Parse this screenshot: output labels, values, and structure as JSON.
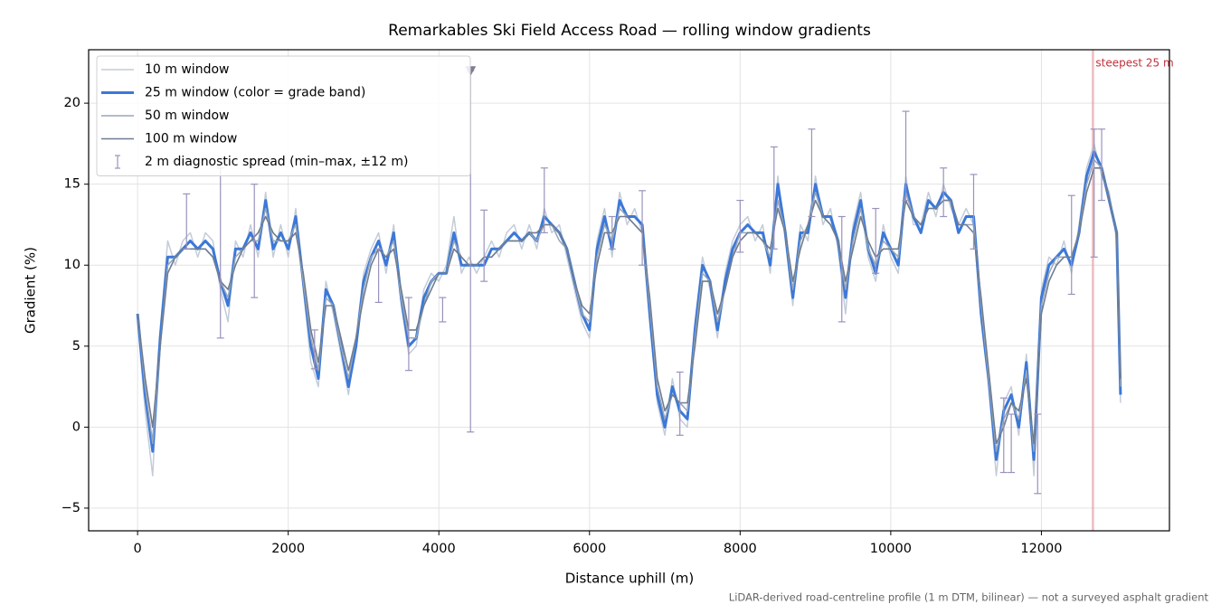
{
  "chart_data": {
    "type": "line",
    "title": "Remarkables Ski Field Access Road — rolling window gradients",
    "xlabel": "Distance uphill (m)",
    "ylabel": "Gradient (%)",
    "footnote": "LiDAR-derived road-centreline profile (1 m DTM, bilinear) — not a surveyed asphalt gradient",
    "xlim": [
      -650,
      13700
    ],
    "ylim": [
      -6.4,
      23.3
    ],
    "xticks": [
      0,
      2000,
      4000,
      6000,
      8000,
      10000,
      12000
    ],
    "yticks": [
      {
        "value": -5,
        "label": "−5"
      },
      0,
      5,
      10,
      15,
      20
    ],
    "grid": true,
    "legend": "upper left",
    "x": [
      0,
      100,
      200,
      300,
      400,
      500,
      600,
      700,
      800,
      900,
      1000,
      1100,
      1200,
      1300,
      1400,
      1500,
      1600,
      1700,
      1800,
      1900,
      2000,
      2100,
      2200,
      2300,
      2400,
      2500,
      2600,
      2700,
      2800,
      2900,
      3000,
      3100,
      3200,
      3300,
      3400,
      3500,
      3600,
      3700,
      3800,
      3900,
      4000,
      4100,
      4200,
      4300,
      4400,
      4500,
      4600,
      4700,
      4800,
      4900,
      5000,
      5100,
      5200,
      5300,
      5400,
      5500,
      5600,
      5700,
      5800,
      5900,
      6000,
      6100,
      6200,
      6300,
      6400,
      6500,
      6600,
      6700,
      6800,
      6900,
      7000,
      7100,
      7200,
      7300,
      7400,
      7500,
      7600,
      7700,
      7800,
      7900,
      8000,
      8100,
      8200,
      8300,
      8400,
      8500,
      8600,
      8700,
      8800,
      8900,
      9000,
      9100,
      9200,
      9300,
      9400,
      9500,
      9600,
      9700,
      9800,
      9900,
      10000,
      10100,
      10200,
      10300,
      10400,
      10500,
      10600,
      10700,
      10800,
      10900,
      11000,
      11100,
      11200,
      11300,
      11400,
      11500,
      11600,
      11700,
      11800,
      11900,
      12000,
      12100,
      12200,
      12300,
      12400,
      12500,
      12600,
      12700,
      12800,
      12900,
      13000,
      13050
    ],
    "series": [
      {
        "name": "10 m window",
        "color": "#b4bfcf",
        "width": 1.5,
        "opacity": 0.8,
        "values": [
          6.5,
          1,
          -3,
          6,
          11.5,
          10,
          11.5,
          12,
          10.5,
          12,
          11.5,
          8.5,
          6.5,
          11.5,
          10.5,
          12.5,
          10.5,
          14.5,
          10.5,
          12.5,
          10.5,
          13.5,
          8.5,
          4,
          2.5,
          9,
          7,
          4.5,
          2,
          5.5,
          9.5,
          11,
          12,
          9.5,
          12.5,
          7.5,
          4.5,
          5,
          8.5,
          9.5,
          9,
          10,
          13,
          9.5,
          10.5,
          9.5,
          10.5,
          11.5,
          10.5,
          12,
          12.5,
          11,
          12.5,
          11,
          13.5,
          12,
          12.5,
          10.5,
          8.5,
          6.5,
          5.5,
          11.5,
          13.5,
          10.5,
          14.5,
          12.5,
          13.5,
          12,
          6.5,
          1.5,
          -0.5,
          3,
          0.5,
          0,
          6.5,
          10.5,
          8.5,
          5.5,
          9.5,
          11.5,
          12.5,
          13,
          11.5,
          12.5,
          9.5,
          15.5,
          11.5,
          7.5,
          12.5,
          11.5,
          15.5,
          12.5,
          13.5,
          11,
          7,
          12.5,
          14.5,
          10.5,
          9,
          12.5,
          10.5,
          9.5,
          15.5,
          12.5,
          12.5,
          14.5,
          13,
          15,
          13.5,
          12.5,
          13.5,
          12.5,
          6.5,
          2.5,
          -3,
          1.5,
          2.5,
          -0.5,
          4.5,
          -3,
          8.5,
          10.5,
          10,
          11.5,
          9.5,
          12.5,
          16,
          17.5,
          15.5,
          14.5,
          11.5,
          1.5
        ]
      },
      {
        "name": "25 m window (color = grade band)",
        "color": "#3b78d8",
        "width": 3,
        "opacity": 1,
        "values": [
          7,
          2,
          -1.5,
          5.5,
          10.5,
          10.5,
          11,
          11.5,
          11,
          11.5,
          11,
          9,
          7.5,
          11,
          11,
          12,
          11,
          14,
          11,
          12,
          11,
          13,
          9,
          5,
          3,
          8.5,
          7.5,
          5,
          2.5,
          5,
          9,
          10.5,
          11.5,
          10,
          12,
          8,
          5,
          5.5,
          8,
          9,
          9.5,
          9.5,
          12,
          10,
          10,
          10,
          10,
          11,
          11,
          11.5,
          12,
          11.5,
          12,
          11.5,
          13,
          12.5,
          12,
          11,
          9,
          7,
          6,
          11,
          13,
          11,
          14,
          13,
          13,
          12.5,
          7,
          2,
          0,
          2.5,
          1,
          0.5,
          6,
          10,
          9,
          6,
          9,
          11,
          12,
          12.5,
          12,
          12,
          10,
          15,
          12,
          8,
          12,
          12,
          15,
          13,
          13,
          11.5,
          8,
          12,
          14,
          11,
          9.5,
          12,
          11,
          10,
          15,
          13,
          12,
          14,
          13.5,
          14.5,
          14,
          12,
          13,
          13,
          7,
          3,
          -2,
          1,
          2,
          0,
          4,
          -2,
          8,
          10,
          10.5,
          11,
          10,
          12,
          15.5,
          17,
          16,
          14,
          12,
          2
        ]
      },
      {
        "name": "50 m window",
        "color": "#98a6b8",
        "width": 1.5,
        "opacity": 1,
        "values": [
          7,
          2.5,
          -1,
          5,
          10,
          10.5,
          11,
          11,
          11,
          11,
          10.5,
          9,
          8,
          10.5,
          11,
          11.5,
          11.5,
          13.5,
          11.5,
          11.5,
          11.5,
          12.5,
          9,
          5.5,
          3.5,
          8,
          7.5,
          5,
          3,
          5.5,
          8.5,
          10.5,
          11,
          10.5,
          11.5,
          8,
          5.5,
          5.5,
          7.5,
          9,
          9.5,
          9.5,
          11.5,
          10.5,
          10,
          10,
          10.5,
          10.5,
          11,
          11.5,
          11.5,
          11.5,
          12,
          11.5,
          12.5,
          12.5,
          11.5,
          11,
          9,
          7,
          6.5,
          10.5,
          12.5,
          11.5,
          13.5,
          13,
          12.5,
          12,
          7.5,
          2.5,
          0.5,
          2,
          1.5,
          1,
          5.5,
          9.5,
          9,
          6.5,
          8.5,
          10.5,
          12,
          12,
          12,
          11.5,
          10.5,
          14,
          12,
          8.5,
          11.5,
          12.5,
          14.5,
          13,
          12.5,
          11.5,
          8.5,
          11.5,
          13.5,
          11,
          10,
          11.5,
          11,
          10.5,
          14.5,
          13,
          12.5,
          13.5,
          13.5,
          14,
          14,
          12.5,
          12.5,
          12.5,
          7.5,
          3,
          -1.5,
          0.5,
          1.5,
          0.5,
          3.5,
          -1.5,
          7.5,
          9.5,
          10.5,
          10.5,
          10.5,
          12,
          15,
          16.5,
          16,
          14,
          12,
          2.5
        ]
      },
      {
        "name": "100 m window",
        "color": "#6e7d91",
        "width": 1.6,
        "opacity": 1,
        "values": [
          7,
          3,
          0,
          5,
          9.5,
          10.5,
          11,
          11,
          11,
          11,
          10.5,
          9,
          8.5,
          10,
          11,
          11.5,
          12,
          13,
          12,
          11.5,
          11.5,
          12,
          9.5,
          6,
          4,
          7.5,
          7.5,
          5.5,
          3.5,
          5.5,
          8,
          10,
          11,
          10.5,
          11,
          8.5,
          6,
          6,
          7.5,
          8.5,
          9.5,
          9.5,
          11,
          10.5,
          10,
          10,
          10.5,
          10.5,
          11,
          11.5,
          11.5,
          11.5,
          12,
          12,
          12.5,
          12.5,
          12,
          11,
          9,
          7.5,
          7,
          10,
          12,
          12,
          13,
          13,
          12.5,
          12,
          8,
          3,
          1,
          2,
          1.5,
          1.5,
          5,
          9,
          9,
          7,
          8.5,
          10.5,
          11.5,
          12,
          12,
          11.5,
          11,
          13.5,
          12,
          9,
          11,
          12.5,
          14,
          13,
          12.5,
          11.5,
          9,
          11,
          13,
          11.5,
          10.5,
          11,
          11,
          11,
          14,
          13,
          12.5,
          13.5,
          13.5,
          14,
          14,
          12.5,
          12.5,
          12,
          8,
          3.5,
          -1,
          0,
          1.5,
          1,
          3,
          -1,
          7,
          9,
          10,
          10.5,
          10.5,
          12,
          14.5,
          16,
          16,
          14,
          12,
          3
        ]
      }
    ],
    "errorbars": {
      "name": "2 m diagnostic spread (min–max, ±12 m)",
      "color": "#9a92bc",
      "x": [
        650,
        1100,
        1550,
        2350,
        3200,
        3600,
        4050,
        4420,
        4600,
        5400,
        6300,
        6700,
        7200,
        8000,
        8450,
        8950,
        9350,
        9800,
        10200,
        10700,
        11100,
        11500,
        11600,
        11950,
        12400,
        12700,
        12800
      ],
      "low": [
        11,
        5.5,
        8,
        3.6,
        7.7,
        3.5,
        6.5,
        -0.3,
        9,
        12,
        11,
        10,
        -0.5,
        10.8,
        11,
        13,
        6.5,
        9.5,
        14,
        13,
        11,
        -2.8,
        -2.8,
        -4.1,
        8.2,
        10.5,
        14
      ],
      "high": [
        14.4,
        16,
        15,
        6,
        11,
        8,
        8,
        22,
        13.4,
        16,
        13,
        14.6,
        3.4,
        14,
        17.3,
        18.4,
        13,
        13.5,
        19.5,
        16,
        15.6,
        1.8,
        0.8,
        0.8,
        14.3,
        18.4,
        18.4
      ]
    },
    "clip_markers": {
      "x": [
        4420
      ],
      "y": [
        22
      ],
      "color": "#7c7c92"
    },
    "annotation": {
      "text": "steepest 25 m",
      "x": 12684,
      "color": "#e8a0a6",
      "text_color": "#c0303a"
    }
  }
}
